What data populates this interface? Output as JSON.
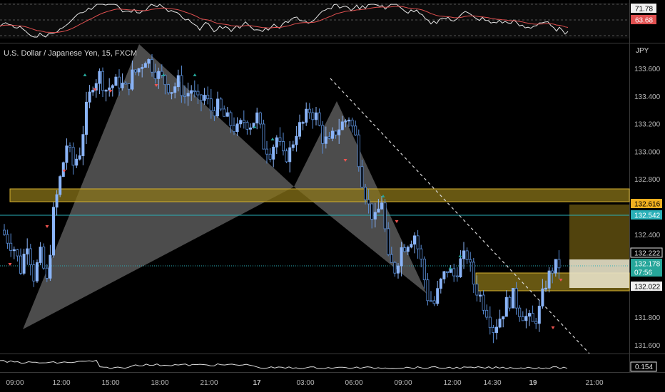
{
  "chart_title": "U.S. Dollar / Japanese Yen, 15, FXCM",
  "currency": "JPY",
  "colors": {
    "background": "#000000",
    "up_candle": "#8ab4f8",
    "down_candle": "#5a8ed8",
    "zone_fill": "#6b5a14",
    "zone_border": "#d4b030",
    "hline": "#2ab0b8",
    "pattern_fill": "#8a8a8a",
    "rsi_line": "#e8e8e8",
    "rsi_ma": "#e05050",
    "arrow_up": "#26a69a",
    "arrow_down": "#ef5350"
  },
  "rsi_panel": {
    "labels": [
      {
        "value": "71.78",
        "color": "#f0f0f0",
        "text_color": "#000000"
      },
      {
        "value": "63.68",
        "color": "#e05050",
        "text_color": "#ffffff"
      }
    ]
  },
  "price_scale": {
    "ticks": [
      "133.600",
      "133.400",
      "133.200",
      "133.000",
      "132.800",
      "132.400",
      "131.800",
      "131.600"
    ],
    "tags": [
      {
        "value": "132.616",
        "bg": "#f0b020",
        "fg": "#000000"
      },
      {
        "value": "132.542",
        "bg": "#2ab0b8",
        "fg": "#ffffff"
      },
      {
        "value": "132.222",
        "bg": "#000000",
        "fg": "#e0e0e0",
        "border": "#e0e0e0"
      },
      {
        "value": "132.178",
        "bg": "#26a69a",
        "fg": "#ffffff"
      },
      {
        "value": "07:56",
        "bg": "#26a69a",
        "fg": "#ffffff"
      },
      {
        "value": "132.022",
        "bg": "#f0f0f0",
        "fg": "#000000"
      }
    ]
  },
  "volume_panel": {
    "value": "0.154"
  },
  "time_axis": {
    "ticks": [
      "09:00",
      "12:00",
      "15:00",
      "18:00",
      "21:00",
      "17",
      "03:00",
      "06:00",
      "09:00",
      "12:00",
      "14:30",
      "19",
      "21:00"
    ]
  },
  "chart_data": {
    "type": "candlestick",
    "title": "U.S. Dollar / Japanese Yen, 15, FXCM",
    "symbol": "USDJPY",
    "interval": "15",
    "source": "FXCM",
    "y_axis_label": "JPY",
    "ylim": [
      131.5,
      133.75
    ],
    "x_ticks": [
      "09:00",
      "12:00",
      "15:00",
      "18:00",
      "21:00",
      "17",
      "03:00",
      "06:00",
      "09:00",
      "12:00",
      "14:30",
      "19",
      "21:00"
    ],
    "y_ticks": [
      133.6,
      133.4,
      133.2,
      133.0,
      132.8,
      132.4,
      131.8,
      131.6
    ],
    "last_price": 132.178,
    "horizontal_levels": [
      132.616,
      132.542,
      132.222,
      132.022
    ],
    "zones": [
      {
        "top": 132.73,
        "bottom": 132.63
      },
      {
        "top": 132.18,
        "bottom": 131.99
      }
    ],
    "close_path": [
      [
        0,
        132.4
      ],
      [
        3,
        132.3
      ],
      [
        5,
        132.15
      ],
      [
        7,
        132.35
      ],
      [
        9,
        132.1
      ],
      [
        11,
        132.25
      ],
      [
        13,
        132.05
      ],
      [
        15,
        132.55
      ],
      [
        17,
        132.8
      ],
      [
        19,
        133.05
      ],
      [
        21,
        132.9
      ],
      [
        23,
        133.0
      ],
      [
        25,
        133.3
      ],
      [
        27,
        133.5
      ],
      [
        29,
        133.55
      ],
      [
        31,
        133.45
      ],
      [
        33,
        133.48
      ],
      [
        35,
        133.5
      ],
      [
        37,
        133.45
      ],
      [
        39,
        133.55
      ],
      [
        41,
        133.6
      ],
      [
        43,
        133.68
      ],
      [
        45,
        133.62
      ],
      [
        47,
        133.55
      ],
      [
        49,
        133.5
      ],
      [
        51,
        133.45
      ],
      [
        53,
        133.5
      ],
      [
        55,
        133.4
      ],
      [
        57,
        133.45
      ],
      [
        59,
        133.35
      ],
      [
        61,
        133.4
      ],
      [
        63,
        133.3
      ],
      [
        65,
        133.32
      ],
      [
        67,
        133.25
      ],
      [
        69,
        133.2
      ],
      [
        71,
        133.15
      ],
      [
        73,
        133.22
      ],
      [
        75,
        133.2
      ],
      [
        77,
        133.25
      ],
      [
        79,
        133.05
      ],
      [
        81,
        133.0
      ],
      [
        83,
        133.1
      ],
      [
        85,
        132.95
      ],
      [
        87,
        133.0
      ],
      [
        89,
        133.15
      ],
      [
        91,
        133.2
      ],
      [
        93,
        133.3
      ],
      [
        95,
        133.25
      ],
      [
        97,
        133.1
      ],
      [
        99,
        133.05
      ],
      [
        101,
        133.15
      ],
      [
        103,
        133.2
      ],
      [
        105,
        133.25
      ],
      [
        107,
        133.1
      ],
      [
        109,
        132.8
      ],
      [
        111,
        132.6
      ],
      [
        113,
        132.5
      ],
      [
        115,
        132.65
      ],
      [
        117,
        132.2
      ],
      [
        119,
        132.15
      ],
      [
        121,
        132.3
      ],
      [
        123,
        132.35
      ],
      [
        125,
        132.4
      ],
      [
        127,
        132.2
      ],
      [
        129,
        131.95
      ],
      [
        131,
        131.9
      ],
      [
        133,
        132.05
      ],
      [
        135,
        132.15
      ],
      [
        137,
        132.1
      ],
      [
        139,
        132.2
      ],
      [
        141,
        132.25
      ],
      [
        143,
        132.05
      ],
      [
        145,
        131.95
      ],
      [
        147,
        131.85
      ],
      [
        149,
        131.72
      ],
      [
        151,
        131.8
      ],
      [
        153,
        131.9
      ],
      [
        155,
        131.95
      ],
      [
        157,
        131.85
      ],
      [
        159,
        131.8
      ],
      [
        161,
        131.75
      ],
      [
        163,
        131.85
      ],
      [
        165,
        132.05
      ],
      [
        167,
        132.15
      ],
      [
        169,
        132.18
      ]
    ]
  }
}
